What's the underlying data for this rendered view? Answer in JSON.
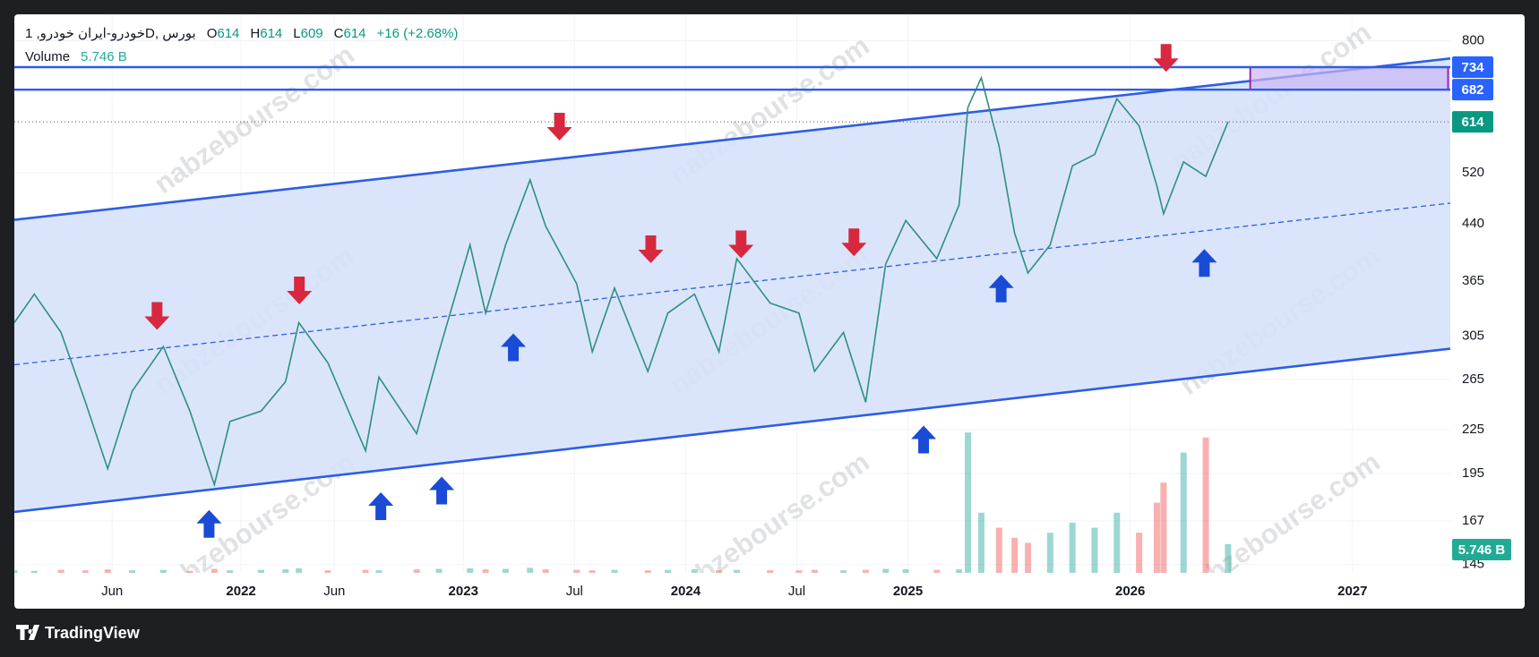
{
  "chart_data": {
    "type": "line",
    "symbol": "خودرو-ایران خودرو, 1D, بورس",
    "ohlc": [
      {
        "label": "O",
        "value": 614
      },
      {
        "label": "H",
        "value": 614
      },
      {
        "label": "L",
        "value": 609
      },
      {
        "label": "C",
        "value": 614
      }
    ],
    "change": "+16 (+2.68%)",
    "volume_title": "Volume",
    "volume_label": "5.746 B",
    "watermark": "nabzebourse.com",
    "brand": "TradingView",
    "color": "#2f8f7f",
    "log_scale": true,
    "grid": true,
    "xlim": [
      2020.98,
      2027.44
    ],
    "ylim": [
      141,
      872
    ],
    "yticks": [
      145,
      167,
      195,
      225,
      265,
      305,
      365,
      440,
      520,
      800
    ],
    "xticks": [
      {
        "value": 2021.42,
        "label": "Jun"
      },
      {
        "value": 2022,
        "label": "2022"
      },
      {
        "value": 2022.42,
        "label": "Jun"
      },
      {
        "value": 2023,
        "label": "2023"
      },
      {
        "value": 2023.5,
        "label": "Jul"
      },
      {
        "value": 2024,
        "label": "2024"
      },
      {
        "value": 2024.5,
        "label": "Jul"
      },
      {
        "value": 2025,
        "label": "2025"
      },
      {
        "value": 2026,
        "label": "2026"
      },
      {
        "value": 2027,
        "label": "2027"
      }
    ],
    "x": [
      2020.98,
      2021.07,
      2021.19,
      2021.3,
      2021.4,
      2021.51,
      2021.65,
      2021.77,
      2021.88,
      2021.95,
      2022.09,
      2022.2,
      2022.26,
      2022.39,
      2022.56,
      2022.62,
      2022.79,
      2022.89,
      2023.03,
      2023.1,
      2023.19,
      2023.3,
      2023.37,
      2023.51,
      2023.58,
      2023.68,
      2023.83,
      2023.92,
      2024.04,
      2024.15,
      2024.23,
      2024.38,
      2024.51,
      2024.58,
      2024.71,
      2024.81,
      2024.9,
      2024.99,
      2025.13,
      2025.23,
      2025.27,
      2025.33,
      2025.41,
      2025.48,
      2025.54,
      2025.64,
      2025.74,
      2025.84,
      2025.94,
      2026.04,
      2026.12,
      2026.15,
      2026.24,
      2026.34,
      2026.44
    ],
    "values": [
      319,
      350,
      309,
      246,
      198,
      255,
      295,
      239,
      188,
      231,
      239,
      263,
      319,
      280,
      210,
      267,
      222,
      290,
      411,
      329,
      411,
      508,
      437,
      362,
      290,
      357,
      272,
      329,
      350,
      290,
      393,
      340,
      329,
      272,
      309,
      246,
      386,
      445,
      393,
      468,
      644,
      709,
      567,
      427,
      375,
      411,
      532,
      552,
      662,
      606,
      498,
      455,
      539,
      514,
      614
    ],
    "volume": [
      0.5,
      0.4,
      0.6,
      0.5,
      0.7,
      0.5,
      0.6,
      0.4,
      0.8,
      0.5,
      0.6,
      0.7,
      0.9,
      0.5,
      0.6,
      0.5,
      0.7,
      0.8,
      0.9,
      0.7,
      0.8,
      1.0,
      0.7,
      0.6,
      0.5,
      0.6,
      0.5,
      0.6,
      0.7,
      0.5,
      0.6,
      0.5,
      0.5,
      0.6,
      0.5,
      0.6,
      0.8,
      0.7,
      0.6,
      0.7,
      28,
      12,
      9,
      7,
      6,
      8,
      10,
      9,
      12,
      8,
      14,
      18,
      24,
      27,
      5.746
    ],
    "channel": {
      "upper": {
        "x": [
          2020.98,
          2027.44
        ],
        "y": [
          446,
          755
        ]
      },
      "mid": {
        "x": [
          2020.98,
          2027.44
        ],
        "y": [
          278,
          471
        ]
      },
      "lower": {
        "x": [
          2020.98,
          2027.44
        ],
        "y": [
          172,
          293
        ]
      }
    },
    "hlines": [
      734,
      682
    ],
    "last_price": 614,
    "zone": {
      "x": [
        2026.54,
        2027.43
      ],
      "y": [
        682,
        734
      ]
    }
  }
}
